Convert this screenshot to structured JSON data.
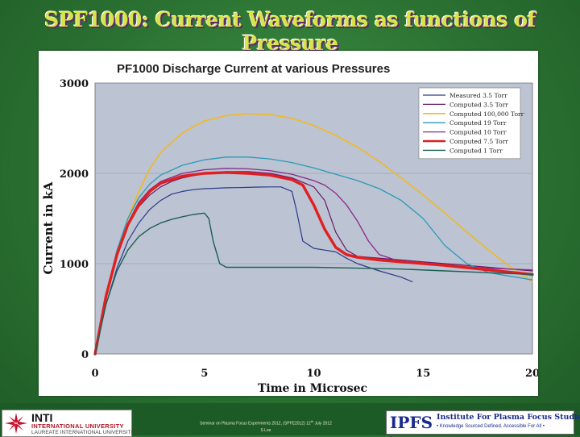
{
  "slide": {
    "title": "SPF1000: Current Waveforms as functions of Pressure"
  },
  "footer": {
    "text_a": "Seminar on Plasma Focus Experiments 2012, (SPFE2012) 12",
    "text_sup": "th",
    "text_b": " July 2012",
    "text_c": "S Lee"
  },
  "logos": {
    "left_name": "INTI",
    "left_university": "INTERNATIONAL UNIVERSITY",
    "left_tagline": "LAUREATE INTERNATIONAL UNIVERSITIES",
    "right_abbrev": "IPFS",
    "right_name": "Institute For Plasma Focus Studies",
    "right_motto": "• Knowledge Sourced Defined. Accessible For All •"
  },
  "chart_data": {
    "type": "line",
    "title": "PF1000 Discharge Current at various Pressures",
    "xlabel": "Time in Microsec",
    "ylabel": "Current in kA",
    "xlim": [
      0,
      20
    ],
    "ylim": [
      0,
      3000
    ],
    "xticks": [
      "0",
      "5",
      "10",
      "15",
      "20"
    ],
    "yticks": [
      "0",
      "1000",
      "2000",
      "3000"
    ],
    "legend_position": "top-right",
    "plot_background": "#bcc3d2",
    "series": [
      {
        "name": "Measured 3.5 Torr",
        "color": "#2a3a8a",
        "width": 1.2,
        "x": [
          0,
          0.5,
          1,
          1.5,
          2,
          2.5,
          3,
          3.5,
          4,
          4.5,
          5,
          5.5,
          6,
          6.5,
          7,
          7.5,
          8,
          8.5,
          9,
          9.2,
          9.5,
          10,
          10.5,
          11,
          11.5,
          12,
          13,
          14,
          14.5
        ],
        "y": [
          0,
          550,
          950,
          1250,
          1450,
          1600,
          1700,
          1770,
          1800,
          1820,
          1830,
          1835,
          1840,
          1842,
          1845,
          1848,
          1850,
          1850,
          1800,
          1600,
          1250,
          1170,
          1150,
          1130,
          1060,
          1000,
          920,
          850,
          800
        ]
      },
      {
        "name": "Computed 3.5 Torr",
        "color": "#6a1a6a",
        "width": 1.2,
        "x": [
          0,
          0.5,
          1,
          1.5,
          2,
          2.5,
          3,
          3.5,
          4,
          5,
          6,
          7,
          8,
          9,
          10,
          10.5,
          11,
          11.5,
          12,
          14,
          16,
          18,
          20
        ],
        "y": [
          0,
          650,
          1100,
          1420,
          1630,
          1760,
          1850,
          1910,
          1950,
          2000,
          2020,
          2020,
          2000,
          1950,
          1850,
          1700,
          1350,
          1150,
          1080,
          1040,
          1000,
          960,
          920
        ]
      },
      {
        "name": "Computed 100,000 Torr",
        "color": "#f2b824",
        "width": 1.6,
        "x": [
          0,
          0.5,
          1,
          1.5,
          2,
          2.5,
          3,
          4,
          5,
          6,
          7,
          8,
          9,
          10,
          11,
          12,
          13,
          14,
          15,
          16,
          17,
          18,
          19,
          20
        ],
        "y": [
          0,
          600,
          1100,
          1500,
          1800,
          2050,
          2230,
          2450,
          2580,
          2640,
          2660,
          2650,
          2610,
          2530,
          2420,
          2290,
          2130,
          1950,
          1760,
          1560,
          1350,
          1150,
          960,
          800
        ]
      },
      {
        "name": "Computed 19 Torr",
        "color": "#2a9ab8",
        "width": 1.3,
        "x": [
          0,
          0.5,
          1,
          1.5,
          2,
          2.5,
          3,
          4,
          5,
          6,
          7,
          8,
          9,
          10,
          11,
          12,
          13,
          14,
          15,
          16,
          17,
          18,
          19,
          20
        ],
        "y": [
          0,
          650,
          1150,
          1500,
          1730,
          1880,
          1980,
          2090,
          2150,
          2180,
          2180,
          2160,
          2120,
          2060,
          1990,
          1920,
          1830,
          1700,
          1500,
          1200,
          1000,
          900,
          860,
          820
        ]
      },
      {
        "name": "Computed 10 Torr",
        "color": "#8a2a8a",
        "width": 1.3,
        "x": [
          0,
          0.5,
          1,
          1.5,
          2,
          2.5,
          3,
          4,
          5,
          6,
          7,
          8,
          9,
          10,
          10.5,
          11,
          11.5,
          12,
          12.5,
          13,
          14,
          16,
          18,
          20
        ],
        "y": [
          0,
          650,
          1120,
          1450,
          1680,
          1820,
          1910,
          2000,
          2040,
          2055,
          2050,
          2030,
          1990,
          1920,
          1870,
          1780,
          1650,
          1470,
          1250,
          1100,
          1020,
          980,
          950,
          930
        ]
      },
      {
        "name": "Computed 7.5 Torr",
        "color": "#e02020",
        "width": 3.4,
        "x": [
          0,
          0.5,
          1,
          1.5,
          2,
          2.5,
          3,
          4,
          5,
          6,
          7,
          8,
          9,
          9.5,
          10,
          10.5,
          11,
          11.5,
          12,
          13,
          14,
          16,
          18,
          20
        ],
        "y": [
          0,
          640,
          1100,
          1430,
          1650,
          1800,
          1890,
          1970,
          2000,
          2010,
          2000,
          1980,
          1930,
          1870,
          1650,
          1380,
          1180,
          1100,
          1070,
          1040,
          1020,
          980,
          930,
          880
        ]
      },
      {
        "name": "Computed 1 Torr",
        "color": "#1f5f55",
        "width": 1.4,
        "x": [
          0,
          0.5,
          1,
          1.5,
          2,
          2.5,
          3,
          3.5,
          4,
          4.5,
          5,
          5.2,
          5.4,
          5.7,
          6,
          7,
          8,
          10,
          12,
          14,
          16,
          18,
          20
        ],
        "y": [
          0,
          550,
          920,
          1150,
          1300,
          1390,
          1450,
          1490,
          1520,
          1545,
          1560,
          1500,
          1250,
          1000,
          960,
          960,
          960,
          960,
          950,
          940,
          920,
          900,
          880
        ]
      }
    ]
  }
}
